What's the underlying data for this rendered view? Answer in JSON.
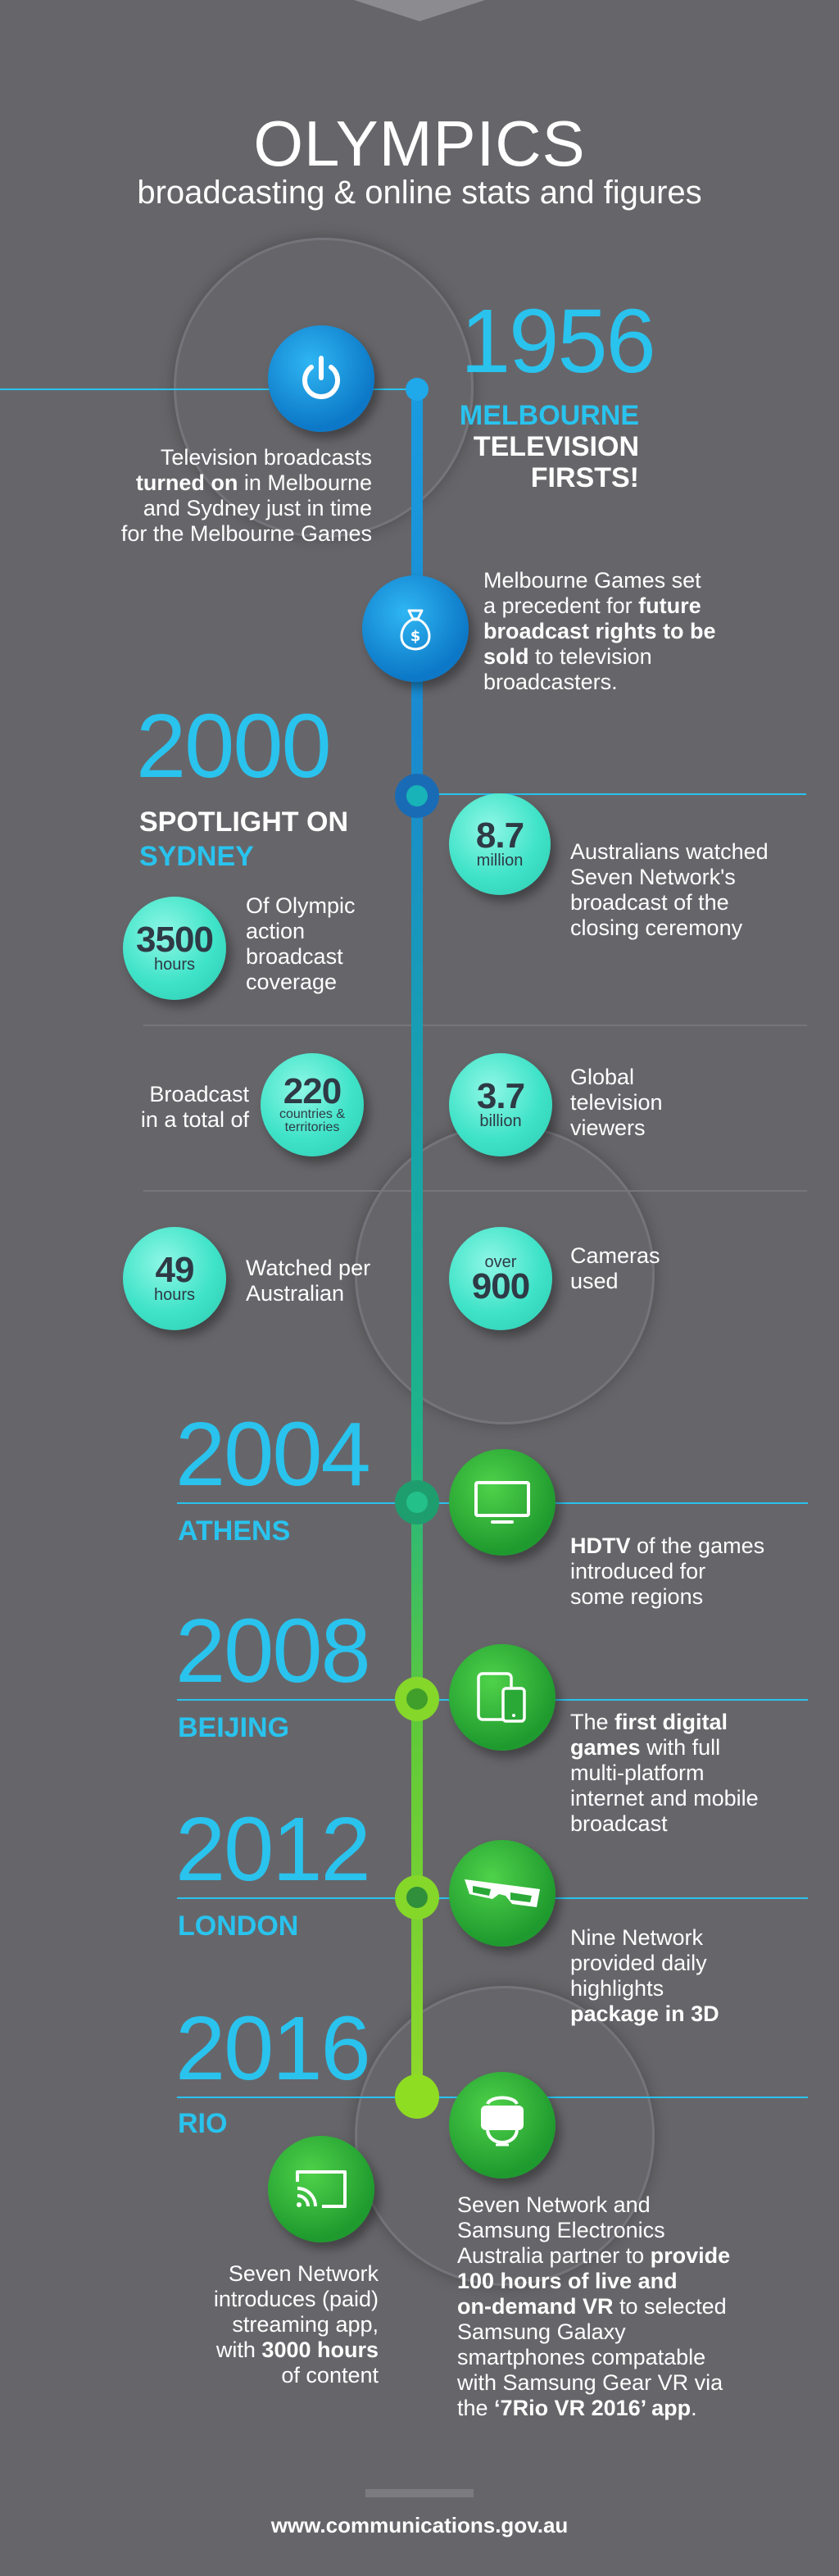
{
  "header": {
    "title": "OLYMPICS",
    "subtitle": "broadcasting & online stats and figures"
  },
  "colors": {
    "background": "#66666a",
    "blue_accent": "#29c3ee",
    "teal_stat": "#3fe3c8",
    "green_icon": "#2fbf3a",
    "lime_line": "#8fd62a"
  },
  "sections": {
    "y1956": {
      "year": "1956",
      "city_line1": "MELBOURNE",
      "city_line2": "TELEVISION",
      "city_line3": "FIRSTS!",
      "icon": "power-icon",
      "text": {
        "l1": "Television broadcasts",
        "l2_bold": "turned on",
        "l2_rest": " in Melbourne",
        "l3": "and Sydney just in time",
        "l4": "for the Melbourne Games"
      },
      "rights": {
        "icon": "money-bag-icon",
        "l1": "Melbourne Games set",
        "l2_pre": "a precedent for ",
        "l2_bold": "future",
        "l3_bold": "broadcast rights to be",
        "l4_bold": "sold",
        "l4_rest": " to television",
        "l5": "broadcasters."
      }
    },
    "y2000": {
      "year": "2000",
      "spot_line1": "SPOTLIGHT ON",
      "spot_line2": "SYDNEY",
      "stats": {
        "viewers_au": {
          "value": "8.7",
          "unit": "million",
          "l1": "Australians watched",
          "l2": "Seven Network's",
          "l3": "broadcast of the",
          "l4": "closing  ceremony"
        },
        "hours": {
          "value": "3500",
          "unit": "hours",
          "l1": "Of Olympic",
          "l2": "action",
          "l3": "broadcast",
          "l4": "coverage"
        },
        "countries": {
          "value": "220",
          "unit": "countries &",
          "unit2": "territories",
          "l1": "Broadcast",
          "l2": "in a total of"
        },
        "global": {
          "value": "3.7",
          "unit": "billion",
          "l1": "Global",
          "l2": "television",
          "l3": "viewers"
        },
        "per_aus": {
          "value": "49",
          "unit": "hours",
          "l1": "Watched per",
          "l2": "Australian"
        },
        "cameras": {
          "prefix": "over",
          "value": "900",
          "l1": "Cameras",
          "l2": "used"
        }
      }
    },
    "y2004": {
      "year": "2004",
      "city": "ATHENS",
      "icon": "tv-icon",
      "l1_bold": "HDTV",
      "l1_rest": " of the games",
      "l2": "introduced for",
      "l3": "some regions"
    },
    "y2008": {
      "year": "2008",
      "city": "BEIJING",
      "icon": "tablet-phone-icon",
      "l1_pre": "The ",
      "l1_bold": "first digital",
      "l2_bold": "games",
      "l2_rest": " with full",
      "l3": "multi-platform",
      "l4": "internet and mobile",
      "l5": "broadcast"
    },
    "y2012": {
      "year": "2012",
      "city": "LONDON",
      "icon": "3d-glasses-icon",
      "l1": "Nine Network",
      "l2": "provided daily",
      "l3": "highlights",
      "l4_bold": "package in 3D"
    },
    "y2016": {
      "year": "2016",
      "city": "RIO",
      "icon": "vr-headset-icon",
      "vr": {
        "l1": "Seven Network and",
        "l2": "Samsung Electronics",
        "l3_pre": "Australia partner to ",
        "l3_bold": "provide",
        "l4_bold": "100 hours of live and",
        "l5_bold": "on-demand VR",
        "l5_rest": " to selected",
        "l6": "Samsung Galaxy",
        "l7": "smartphones compatable",
        "l8": "with Samsung Gear VR via",
        "l9_pre": "the ",
        "l9_bold": "‘7Rio VR 2016’ app",
        "l9_rest": "."
      },
      "stream": {
        "icon": "cast-icon",
        "l1": "Seven Network",
        "l2": "introduces (paid)",
        "l3": "streaming app,",
        "l4_pre": "with ",
        "l4_bold": "3000 hours",
        "l5": "of content"
      }
    }
  },
  "footer": {
    "url": "www.communications.gov.au"
  }
}
